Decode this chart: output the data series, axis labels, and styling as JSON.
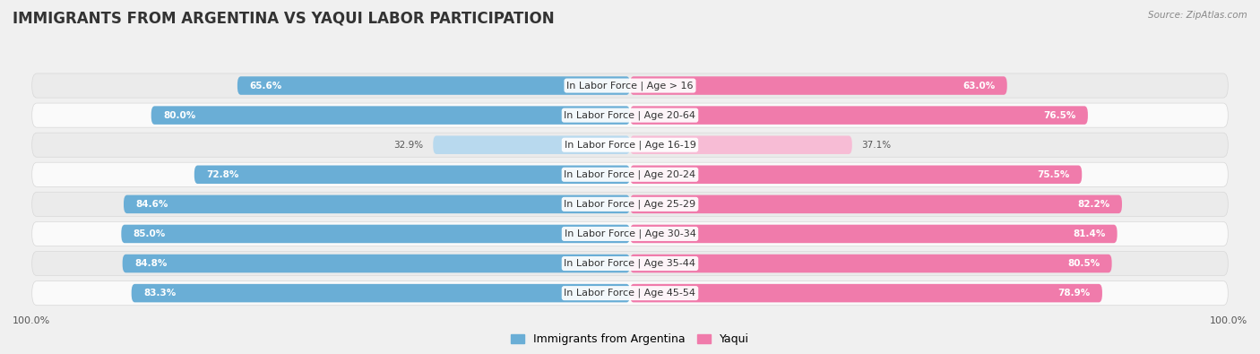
{
  "title": "IMMIGRANTS FROM ARGENTINA VS YAQUI LABOR PARTICIPATION",
  "source": "Source: ZipAtlas.com",
  "categories": [
    "In Labor Force | Age > 16",
    "In Labor Force | Age 20-64",
    "In Labor Force | Age 16-19",
    "In Labor Force | Age 20-24",
    "In Labor Force | Age 25-29",
    "In Labor Force | Age 30-34",
    "In Labor Force | Age 35-44",
    "In Labor Force | Age 45-54"
  ],
  "argentina_values": [
    65.6,
    80.0,
    32.9,
    72.8,
    84.6,
    85.0,
    84.8,
    83.3
  ],
  "yaqui_values": [
    63.0,
    76.5,
    37.1,
    75.5,
    82.2,
    81.4,
    80.5,
    78.9
  ],
  "argentina_color": "#6aaed6",
  "argentina_color_light": "#b8d9ee",
  "yaqui_color": "#f07bab",
  "yaqui_color_light": "#f7bcd5",
  "argentina_label": "Immigrants from Argentina",
  "yaqui_label": "Yaqui",
  "background_color": "#f0f0f0",
  "row_light_color": "#fafafa",
  "row_dark_color": "#ebebeb",
  "row_border_color": "#d8d8d8",
  "bar_height": 0.62,
  "title_fontsize": 12,
  "label_fontsize": 8,
  "value_fontsize": 7.5,
  "source_fontsize": 7.5,
  "tick_fontsize": 8
}
